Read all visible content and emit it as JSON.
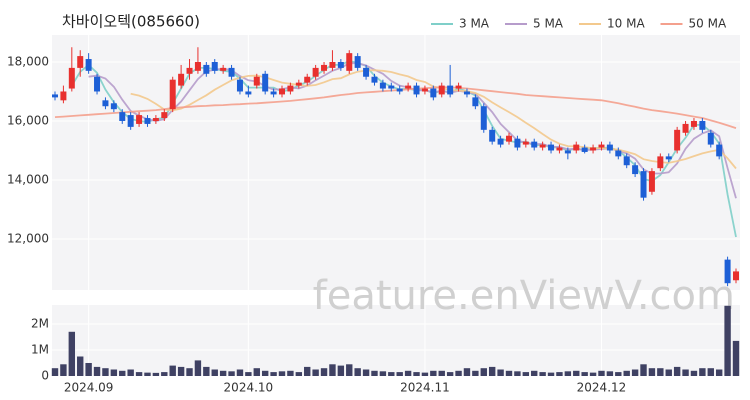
{
  "chart_data": {
    "type": "candlestick",
    "title": "차바이오텍(085660)",
    "watermark": "feature.enViewV.com",
    "legend": "top-right",
    "up_color": "#e8302e",
    "down_color": "#1d5fd6",
    "categories": [
      null,
      null,
      null,
      null,
      "2024.09",
      null,
      null,
      null,
      null,
      null,
      null,
      null,
      null,
      null,
      null,
      null,
      null,
      null,
      null,
      null,
      null,
      null,
      null,
      "2024.10",
      null,
      null,
      null,
      null,
      null,
      null,
      null,
      null,
      null,
      null,
      null,
      null,
      null,
      null,
      null,
      null,
      null,
      null,
      null,
      null,
      "2024.11",
      null,
      null,
      null,
      null,
      null,
      null,
      null,
      null,
      null,
      null,
      null,
      null,
      null,
      null,
      null,
      null,
      null,
      null,
      null,
      null,
      "2024.12",
      null,
      null,
      null,
      null,
      null,
      null,
      null,
      null,
      null,
      null,
      null,
      null,
      null,
      null,
      null,
      null
    ],
    "ohlc": [
      [
        16900,
        17000,
        16700,
        16800
      ],
      [
        16700,
        17200,
        16600,
        17000
      ],
      [
        17100,
        18500,
        17000,
        17800
      ],
      [
        17800,
        18400,
        17500,
        18200
      ],
      [
        18100,
        18300,
        17600,
        17700
      ],
      [
        17500,
        17600,
        16900,
        17000
      ],
      [
        16700,
        16800,
        16400,
        16500
      ],
      [
        16600,
        16700,
        16300,
        16400
      ],
      [
        16300,
        16400,
        15900,
        16000
      ],
      [
        16200,
        16300,
        15700,
        15800
      ],
      [
        15900,
        16300,
        15800,
        16200
      ],
      [
        16100,
        16200,
        15800,
        15900
      ],
      [
        16000,
        16200,
        15900,
        16100
      ],
      [
        16100,
        16400,
        16000,
        16300
      ],
      [
        16400,
        17500,
        16300,
        17400
      ],
      [
        17200,
        17900,
        17100,
        17600
      ],
      [
        17600,
        18100,
        17400,
        17800
      ],
      [
        17700,
        18500,
        17600,
        18000
      ],
      [
        17900,
        18000,
        17500,
        17600
      ],
      [
        18000,
        18100,
        17600,
        17700
      ],
      [
        17700,
        17900,
        17600,
        17800
      ],
      [
        17800,
        17900,
        17400,
        17500
      ],
      [
        17400,
        17500,
        16900,
        17000
      ],
      [
        17000,
        17200,
        16800,
        16900
      ],
      [
        17200,
        17600,
        17100,
        17500
      ],
      [
        17600,
        17700,
        16900,
        17000
      ],
      [
        17000,
        17100,
        16800,
        16900
      ],
      [
        16900,
        17200,
        16800,
        17100
      ],
      [
        17000,
        17300,
        16900,
        17200
      ],
      [
        17200,
        17400,
        17100,
        17300
      ],
      [
        17300,
        17600,
        17200,
        17500
      ],
      [
        17500,
        17900,
        17400,
        17800
      ],
      [
        17700,
        18000,
        17600,
        17900
      ],
      [
        17800,
        18400,
        17700,
        18000
      ],
      [
        18000,
        18100,
        17700,
        17800
      ],
      [
        17700,
        18400,
        17600,
        18300
      ],
      [
        18200,
        18300,
        17700,
        17800
      ],
      [
        17800,
        17900,
        17400,
        17500
      ],
      [
        17500,
        17600,
        17200,
        17300
      ],
      [
        17300,
        17400,
        17000,
        17100
      ],
      [
        17200,
        17300,
        17000,
        17100
      ],
      [
        17100,
        17200,
        16900,
        17000
      ],
      [
        17100,
        17300,
        17000,
        17200
      ],
      [
        17200,
        17300,
        16800,
        16900
      ],
      [
        17000,
        17200,
        16900,
        17100
      ],
      [
        17100,
        17200,
        16700,
        16800
      ],
      [
        16900,
        17300,
        16800,
        17200
      ],
      [
        17200,
        17900,
        16800,
        16900
      ],
      [
        17100,
        17300,
        17000,
        17200
      ],
      [
        17000,
        17100,
        16800,
        16900
      ],
      [
        16800,
        16900,
        16400,
        16500
      ],
      [
        16500,
        16600,
        15600,
        15700
      ],
      [
        15700,
        15800,
        15200,
        15300
      ],
      [
        15400,
        15500,
        15100,
        15200
      ],
      [
        15300,
        15600,
        15200,
        15500
      ],
      [
        15400,
        15500,
        15000,
        15100
      ],
      [
        15200,
        15400,
        15100,
        15300
      ],
      [
        15300,
        15400,
        15000,
        15100
      ],
      [
        15100,
        15300,
        15000,
        15200
      ],
      [
        15200,
        15300,
        14900,
        15000
      ],
      [
        15000,
        15200,
        14900,
        15100
      ],
      [
        15000,
        15100,
        14700,
        14900
      ],
      [
        15000,
        15300,
        14900,
        15200
      ],
      [
        15100,
        15200,
        14900,
        14950
      ],
      [
        15000,
        15200,
        14900,
        15100
      ],
      [
        15100,
        15300,
        15000,
        15200
      ],
      [
        15200,
        15300,
        14900,
        15000
      ],
      [
        15000,
        15100,
        14700,
        14800
      ],
      [
        14800,
        14900,
        14400,
        14500
      ],
      [
        14500,
        14600,
        14100,
        14200
      ],
      [
        14300,
        14400,
        13300,
        13400
      ],
      [
        13600,
        14400,
        13500,
        14300
      ],
      [
        14400,
        14900,
        14300,
        14800
      ],
      [
        14800,
        14900,
        14600,
        14700
      ],
      [
        15000,
        15800,
        14900,
        15700
      ],
      [
        15600,
        16000,
        15500,
        15900
      ],
      [
        15800,
        16100,
        15700,
        16000
      ],
      [
        16000,
        16100,
        15600,
        15700
      ],
      [
        15600,
        15700,
        15100,
        15200
      ],
      [
        15200,
        15300,
        14700,
        14800
      ],
      [
        11300,
        11400,
        10400,
        10500
      ],
      [
        10600,
        11000,
        10500,
        10900
      ]
    ],
    "ylim": [
      10270,
      18915
    ],
    "yticks": [
      {
        "value": 12000,
        "label": "12,000"
      },
      {
        "value": 14000,
        "label": "14,000"
      },
      {
        "value": 16000,
        "label": "16,000"
      },
      {
        "value": 18000,
        "label": "18,000"
      }
    ],
    "series": [
      {
        "name": "3 MA",
        "color": "#7fcfc9",
        "values": [
          null,
          null,
          17200,
          17667,
          17900,
          17633,
          17067,
          16633,
          16300,
          16067,
          16000,
          15967,
          16067,
          16100,
          16600,
          17100,
          17600,
          17800,
          17800,
          17767,
          17700,
          17667,
          17433,
          17133,
          17133,
          17133,
          17133,
          17000,
          17067,
          17200,
          17333,
          17533,
          17733,
          17900,
          17900,
          18033,
          17967,
          17867,
          17533,
          17300,
          17167,
          17067,
          17100,
          17033,
          17067,
          16933,
          17033,
          16967,
          17100,
          17000,
          16867,
          16367,
          15833,
          15400,
          15333,
          15267,
          15300,
          15167,
          15200,
          15100,
          15100,
          15000,
          15067,
          15017,
          15083,
          15083,
          15100,
          15000,
          14767,
          14500,
          14033,
          13967,
          14167,
          14600,
          15067,
          15433,
          15867,
          15867,
          15633,
          15233,
          13500,
          12067
        ]
      },
      {
        "name": "5 MA",
        "color": "#b69ccb",
        "values": [
          null,
          null,
          null,
          null,
          17500,
          17540,
          17440,
          17160,
          16720,
          16340,
          16180,
          16060,
          16000,
          16060,
          16380,
          16660,
          17040,
          17420,
          17680,
          17740,
          17780,
          17720,
          17520,
          17380,
          17340,
          17180,
          17060,
          17080,
          17140,
          17100,
          17200,
          17380,
          17540,
          17700,
          17800,
          17960,
          17960,
          17880,
          17740,
          17600,
          17360,
          17200,
          17140,
          17040,
          17040,
          16980,
          17020,
          16960,
          17020,
          16980,
          16920,
          16620,
          16300,
          15900,
          15620,
          15340,
          15260,
          15220,
          15220,
          15120,
          15120,
          15040,
          15060,
          15010,
          15030,
          15050,
          15070,
          14990,
          14900,
          14720,
          14360,
          14220,
          14220,
          14260,
          14560,
          15060,
          15400,
          15580,
          15680,
          15480,
          14400,
          13380
        ]
      },
      {
        "name": "10 MA",
        "color": "#f3c98d",
        "values": [
          null,
          null,
          null,
          null,
          null,
          null,
          null,
          null,
          null,
          16920,
          16860,
          16750,
          16580,
          16390,
          16360,
          16420,
          16550,
          16710,
          16870,
          17060,
          17220,
          17380,
          17470,
          17530,
          17540,
          17480,
          17390,
          17300,
          17260,
          17220,
          17190,
          17220,
          17310,
          17420,
          17450,
          17580,
          17670,
          17710,
          17720,
          17700,
          17660,
          17580,
          17510,
          17390,
          17320,
          17170,
          17110,
          17050,
          17030,
          17010,
          16950,
          16820,
          16630,
          16460,
          16300,
          16130,
          15940,
          15760,
          15560,
          15370,
          15230,
          15150,
          15140,
          15115,
          15075,
          15085,
          15055,
          15025,
          14955,
          14875,
          14705,
          14645,
          14605,
          14580,
          14640,
          14710,
          14810,
          14900,
          14970,
          15020,
          14730,
          14390
        ]
      },
      {
        "name": "50 MA",
        "color": "#f4a08d",
        "values": [
          16130,
          16150,
          16170,
          16190,
          16210,
          16230,
          16250,
          16270,
          16290,
          16310,
          16330,
          16350,
          16370,
          16400,
          16440,
          16460,
          16480,
          16500,
          16510,
          16530,
          16540,
          16560,
          16570,
          16590,
          16600,
          16620,
          16640,
          16660,
          16680,
          16710,
          16740,
          16770,
          16800,
          16840,
          16880,
          16910,
          16950,
          16970,
          16990,
          17010,
          17030,
          17050,
          17070,
          17090,
          17110,
          17130,
          17150,
          17140,
          17120,
          17100,
          17070,
          17040,
          17010,
          16980,
          16950,
          16920,
          16880,
          16860,
          16840,
          16820,
          16800,
          16780,
          16760,
          16740,
          16720,
          16700,
          16650,
          16600,
          16540,
          16480,
          16420,
          16370,
          16330,
          16290,
          16250,
          16200,
          16150,
          16100,
          16020,
          15940,
          15850,
          15760
        ]
      }
    ],
    "volume": {
      "color": "#3f4163",
      "ylim": [
        0,
        2730000
      ],
      "yticks": [
        0,
        {
          "value": 1000000,
          "label": "1M"
        },
        {
          "value": 2000000,
          "label": "2M"
        }
      ],
      "values": [
        300000,
        450000,
        1700000,
        750000,
        500000,
        350000,
        300000,
        250000,
        200000,
        250000,
        150000,
        130000,
        120000,
        150000,
        400000,
        350000,
        300000,
        600000,
        350000,
        250000,
        200000,
        180000,
        250000,
        150000,
        300000,
        200000,
        150000,
        180000,
        200000,
        150000,
        350000,
        250000,
        300000,
        450000,
        400000,
        450000,
        300000,
        250000,
        200000,
        180000,
        150000,
        150000,
        200000,
        150000,
        130000,
        200000,
        200000,
        150000,
        200000,
        300000,
        200000,
        300000,
        350000,
        250000,
        200000,
        180000,
        150000,
        200000,
        150000,
        130000,
        150000,
        180000,
        200000,
        150000,
        130000,
        200000,
        180000,
        150000,
        200000,
        250000,
        450000,
        300000,
        300000,
        250000,
        350000,
        250000,
        200000,
        300000,
        300000,
        250000,
        2700000,
        1350000
      ]
    }
  }
}
